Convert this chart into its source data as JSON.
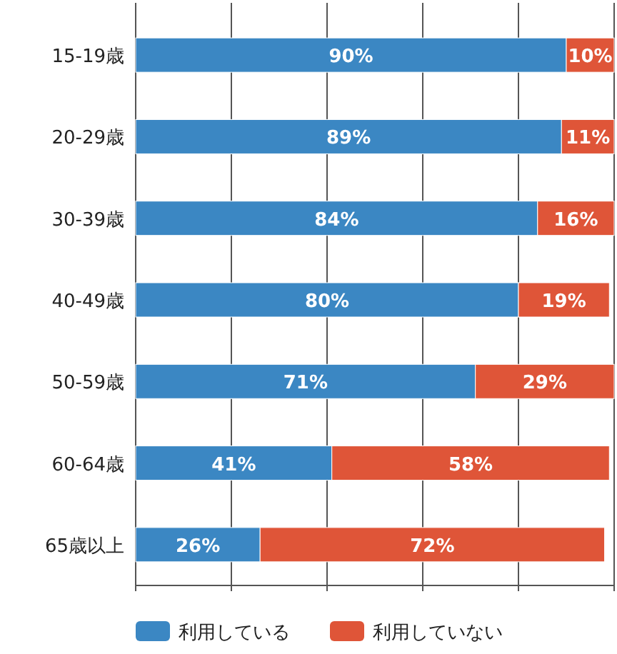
{
  "chart_data": {
    "type": "bar",
    "orientation": "horizontal",
    "stacked": true,
    "categories": [
      "15-19歳",
      "20-29歳",
      "30-39歳",
      "40-49歳",
      "50-59歳",
      "60-64歳",
      "65歳以上"
    ],
    "series": [
      {
        "name": "利用している",
        "color": "#3b87c3",
        "values": [
          90,
          89,
          84,
          80,
          71,
          41,
          26
        ],
        "value_labels": [
          "90%",
          "89%",
          "84%",
          "80%",
          "71%",
          "41%",
          "26%"
        ]
      },
      {
        "name": "利用していない",
        "color": "#df5538",
        "values": [
          10,
          11,
          16,
          19,
          29,
          58,
          72
        ],
        "value_labels": [
          "10%",
          "11%",
          "16%",
          "19%",
          "29%",
          "58%",
          "72%"
        ]
      }
    ],
    "xlim": [
      0,
      100
    ],
    "xticks": [
      {
        "value": 0,
        "label": null
      },
      {
        "value": 20,
        "label": null
      },
      {
        "value": 40,
        "label": null
      },
      {
        "value": 60,
        "label": null
      },
      {
        "value": 80,
        "label": null
      },
      {
        "value": 100,
        "label": null
      }
    ],
    "grid": "x",
    "legend": "bottom",
    "tick_labels": "y"
  }
}
